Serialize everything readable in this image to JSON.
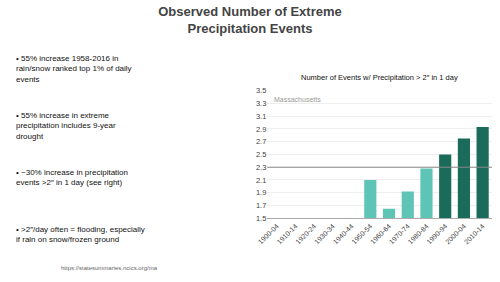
{
  "chart_data": {
    "type": "bar",
    "title": "Observed Number of Extreme\nPrecipitation Events",
    "subtitle": "Number of Events w/ Precipitation > 2″ in 1 day",
    "label": "Massachusetts",
    "annotations": [
      "• 55% increase 1958-2016 in\nrain/snow ranked top 1% of daily\nevents",
      "• 55% increase in extreme\nprecipitation includes 9-year\ndrought",
      "• ~30% increase in precipitation\nevents >2″ in 1 day (see right)",
      "• >2″/day often = flooding, especially\nif rain on snow/frozen ground"
    ],
    "source": "https://statesummaries.ncics.org/ma",
    "categories": [
      "1900-04",
      "1910-14",
      "1920-24",
      "1930-34",
      "1940-44",
      "1950-54",
      "1960-64",
      "1970-74",
      "1980-84",
      "1990-94",
      "2000-04",
      "2010-14"
    ],
    "values": [
      null,
      null,
      null,
      null,
      null,
      2.1,
      1.65,
      1.92,
      2.28,
      2.5,
      2.75,
      2.93
    ],
    "colors": [
      null,
      null,
      null,
      null,
      null,
      "#5ec4b5",
      "#5ec4b5",
      "#5ec4b5",
      "#5ec4b5",
      "#1a6b5a",
      "#1a6b5a",
      "#1a6b5a"
    ],
    "baseline": 2.3,
    "ylim": [
      1.5,
      3.5
    ],
    "yticks": [
      1.5,
      1.7,
      1.9,
      2.1,
      2.3,
      2.5,
      2.7,
      2.9,
      3.1,
      3.3,
      3.5
    ],
    "grid": true
  }
}
